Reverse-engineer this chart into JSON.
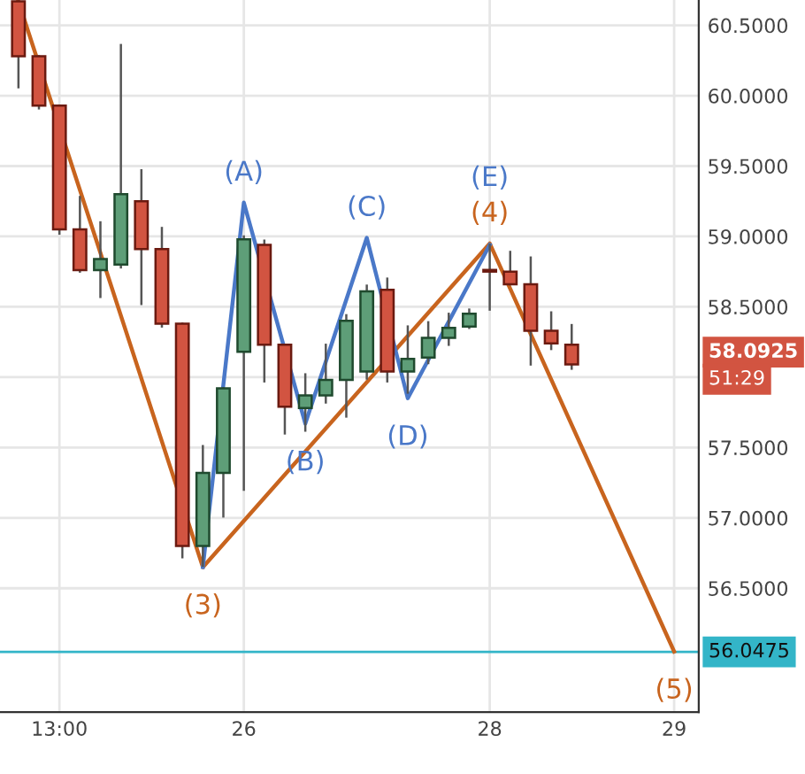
{
  "chart_data": {
    "type": "candlestick",
    "categories": [
      null,
      null,
      "13:00",
      null,
      null,
      null,
      null,
      null,
      null,
      null,
      null,
      "26",
      null,
      null,
      null,
      null,
      null,
      null,
      null,
      null,
      null,
      null,
      null,
      "28",
      null,
      null,
      null,
      null,
      null,
      null,
      null,
      null,
      "29"
    ],
    "ohlc": [
      [
        60.67,
        60.67,
        60.06,
        60.28
      ],
      [
        60.28,
        60.28,
        59.91,
        59.93
      ],
      [
        59.93,
        59.93,
        59.02,
        59.05
      ],
      [
        59.05,
        59.28,
        58.75,
        58.76
      ],
      [
        58.76,
        59.1,
        58.57,
        58.84
      ],
      [
        58.8,
        60.36,
        58.78,
        59.3
      ],
      [
        59.25,
        59.47,
        58.52,
        58.91
      ],
      [
        58.91,
        59.06,
        58.36,
        58.38
      ],
      [
        58.38,
        58.38,
        56.72,
        56.8
      ],
      [
        56.8,
        57.51,
        56.66,
        57.32
      ],
      [
        57.32,
        57.92,
        57.01,
        57.92
      ],
      [
        58.18,
        59.0,
        57.2,
        58.98
      ],
      [
        58.94,
        58.97,
        57.97,
        58.23
      ],
      [
        58.23,
        58.23,
        57.6,
        57.79
      ],
      [
        57.78,
        58.02,
        57.62,
        57.87
      ],
      [
        57.87,
        58.23,
        57.82,
        57.98
      ],
      [
        57.98,
        58.44,
        57.72,
        58.4
      ],
      [
        58.04,
        58.65,
        57.99,
        58.61
      ],
      [
        58.62,
        58.7,
        57.97,
        58.04
      ],
      [
        58.04,
        58.36,
        57.89,
        58.13
      ],
      [
        58.14,
        58.39,
        58.1,
        58.28
      ],
      [
        58.28,
        58.45,
        58.23,
        58.35
      ],
      [
        58.36,
        58.48,
        58.35,
        58.45
      ],
      [
        58.76,
        58.94,
        58.48,
        58.75
      ],
      [
        58.75,
        58.89,
        58.66,
        58.66
      ],
      [
        58.66,
        58.85,
        58.09,
        58.33
      ],
      [
        58.33,
        58.46,
        58.2,
        58.24
      ],
      [
        58.23,
        58.37,
        58.06,
        58.09
      ],
      null,
      null,
      null,
      null,
      null
    ],
    "colors": [
      "#d25441",
      "#d25441",
      "#d25441",
      "#d25441",
      "#5e9e78",
      "#5e9e78",
      "#d25441",
      "#d25441",
      "#d25441",
      "#5e9e78",
      "#5e9e78",
      "#5e9e78",
      "#d25441",
      "#d25441",
      "#5e9e78",
      "#5e9e78",
      "#5e9e78",
      "#5e9e78",
      "#d25441",
      "#5e9e78",
      "#5e9e78",
      "#5e9e78",
      "#5e9e78",
      "#7a1f12",
      "#d25441",
      "#d25441",
      "#d25441",
      "#d25441",
      null,
      null,
      null,
      null,
      null
    ],
    "series": [
      {
        "type": "line",
        "color": "#c8641e",
        "values": [
          60.67,
          null,
          null,
          null,
          null,
          null,
          null,
          null,
          null,
          56.65,
          null,
          null,
          null,
          null,
          null,
          null,
          null,
          null,
          null,
          null,
          null,
          null,
          null,
          58.95,
          null,
          null,
          null,
          null,
          null,
          null,
          null,
          null,
          56.05
        ]
      },
      {
        "type": "line",
        "color": "#4a78c8",
        "values": [
          null,
          null,
          null,
          null,
          null,
          null,
          null,
          null,
          null,
          56.65,
          null,
          59.24,
          null,
          null,
          57.67,
          null,
          null,
          58.99,
          null,
          57.85,
          null,
          null,
          null,
          58.94,
          null,
          null,
          null,
          null,
          null,
          null,
          null,
          null,
          null
        ]
      }
    ],
    "ylim": [
      55.62,
      60.68
    ],
    "yticks": [
      {
        "value": 56.5,
        "label": "56.5000"
      },
      {
        "value": 57.0,
        "label": "57.0000"
      },
      {
        "value": 57.5,
        "label": "57.5000"
      },
      {
        "value": 58.0,
        "label": null
      },
      {
        "value": 58.5,
        "label": "58.5000"
      },
      {
        "value": 59.0,
        "label": "59.0000"
      },
      {
        "value": 59.5,
        "label": "59.5000"
      },
      {
        "value": 60.0,
        "label": "60.0000"
      },
      {
        "value": 60.5,
        "label": "60.5000"
      }
    ],
    "grid": true,
    "ref_lines": [
      {
        "axis": "y",
        "value": 56.0475,
        "label": "56.0475",
        "color": "#33b5c8"
      }
    ],
    "annotations": [
      {
        "text": "(A)",
        "y": 59.24
      },
      {
        "text": "(B)",
        "y": 57.67
      },
      {
        "text": "(C)",
        "y": 58.99
      },
      {
        "text": "(D)",
        "y": 57.85
      },
      {
        "text": "(4)",
        "y": 58.95
      },
      {
        "text": "(E)",
        "y": 58.94
      },
      {
        "text": "(3)",
        "y": 56.65
      },
      {
        "text": "(5)",
        "x": "29",
        "y": 56.05
      },
      "58.0925",
      "51:29"
    ]
  }
}
